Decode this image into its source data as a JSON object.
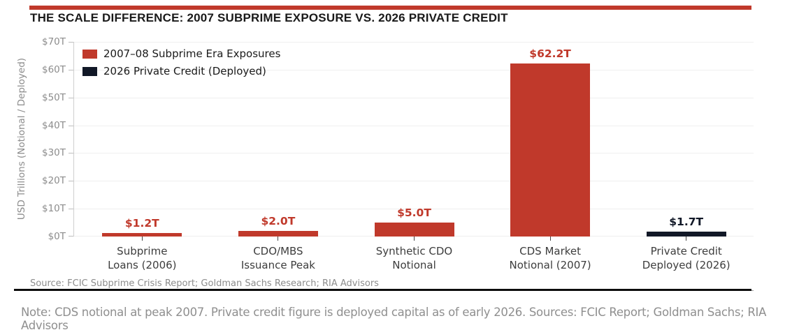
{
  "page": {
    "title": "THE SCALE DIFFERENCE: 2007 SUBPRIME EXPOSURE VS. 2026 PRIVATE CREDIT",
    "source_line": "Source: FCIC Subprime Crisis Report; Goldman Sachs Research; RIA Advisors",
    "footnote": "Note: CDS notional at peak 2007. Private credit figure is deployed capital as of early 2026. Sources: FCIC Report; Goldman Sachs; RIA Advisors",
    "accent_color": "#c0392b"
  },
  "chart_data": {
    "type": "bar",
    "title": "THE SCALE DIFFERENCE: 2007 SUBPRIME EXPOSURE VS. 2026 PRIVATE CREDIT",
    "xlabel": "",
    "ylabel": "USD Trillions (Notional / Deployed)",
    "ylim": [
      0,
      70
    ],
    "ytick_step": 10,
    "yticks": [
      "$0T",
      "$10T",
      "$20T",
      "$30T",
      "$40T",
      "$50T",
      "$60T",
      "$70T"
    ],
    "grid": true,
    "legend_position": "upper-left",
    "legend": [
      {
        "label": "2007–08 Subprime Era Exposures",
        "color": "#c0392b"
      },
      {
        "label": "2026 Private Credit (Deployed)",
        "color": "#111827"
      }
    ],
    "categories": [
      "Subprime Loans (2006)",
      "CDO/MBS Issuance Peak",
      "Synthetic CDO Notional",
      "CDS Market Notional (2007)",
      "Private Credit Deployed (2026)"
    ],
    "bars": [
      {
        "category_lines": [
          "Subprime",
          "Loans (2006)"
        ],
        "value": 1.2,
        "display": "$1.2T",
        "series": "2007–08 Subprime Era Exposures",
        "color": "#c0392b"
      },
      {
        "category_lines": [
          "CDO/MBS",
          "Issuance Peak"
        ],
        "value": 2.0,
        "display": "$2.0T",
        "series": "2007–08 Subprime Era Exposures",
        "color": "#c0392b"
      },
      {
        "category_lines": [
          "Synthetic CDO",
          "Notional"
        ],
        "value": 5.0,
        "display": "$5.0T",
        "series": "2007–08 Subprime Era Exposures",
        "color": "#c0392b"
      },
      {
        "category_lines": [
          "CDS Market",
          "Notional (2007)"
        ],
        "value": 62.2,
        "display": "$62.2T",
        "series": "2007–08 Subprime Era Exposures",
        "color": "#c0392b"
      },
      {
        "category_lines": [
          "Private Credit",
          "Deployed (2026)"
        ],
        "value": 1.7,
        "display": "$1.7T",
        "series": "2026 Private Credit (Deployed)",
        "color": "#111827"
      }
    ]
  }
}
